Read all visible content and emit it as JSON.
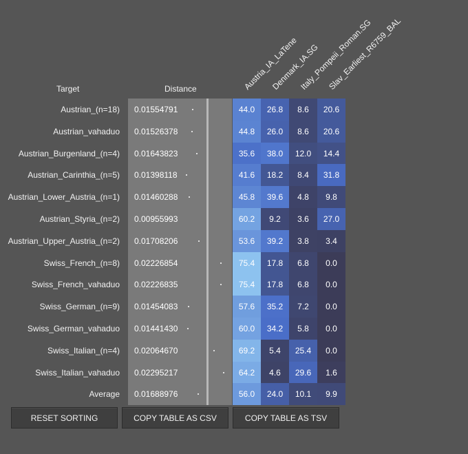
{
  "header": {
    "target_label": "Target",
    "distance_label": "Distance",
    "columns": [
      "Austria_IA_LaTene",
      "Denmark_IA.SG",
      "Italy_Pompeii_Roman.SG",
      "Slav_Earliest_R6759_BAL"
    ]
  },
  "rows": [
    {
      "name": "Austrian_(n=18)",
      "distance": "0.01554791",
      "values": [
        "44.0",
        "26.8",
        "8.6",
        "20.6"
      ]
    },
    {
      "name": "Austrian_vahaduo",
      "distance": "0.01526378",
      "values": [
        "44.8",
        "26.0",
        "8.6",
        "20.6"
      ]
    },
    {
      "name": "Austrian_Burgenland_(n=4)",
      "distance": "0.01643823",
      "values": [
        "35.6",
        "38.0",
        "12.0",
        "14.4"
      ]
    },
    {
      "name": "Austrian_Carinthia_(n=5)",
      "distance": "0.01398118",
      "values": [
        "41.6",
        "18.2",
        "8.4",
        "31.8"
      ]
    },
    {
      "name": "Austrian_Lower_Austria_(n=1)",
      "distance": "0.01460288",
      "values": [
        "45.8",
        "39.6",
        "4.8",
        "9.8"
      ]
    },
    {
      "name": "Austrian_Styria_(n=2)",
      "distance": "0.00955993",
      "values": [
        "60.2",
        "9.2",
        "3.6",
        "27.0"
      ]
    },
    {
      "name": "Austrian_Upper_Austria_(n=2)",
      "distance": "0.01708206",
      "values": [
        "53.6",
        "39.2",
        "3.8",
        "3.4"
      ]
    },
    {
      "name": "Swiss_French_(n=8)",
      "distance": "0.02226854",
      "values": [
        "75.4",
        "17.8",
        "6.8",
        "0.0"
      ]
    },
    {
      "name": "Swiss_French_vahaduo",
      "distance": "0.02226835",
      "values": [
        "75.4",
        "17.8",
        "6.8",
        "0.0"
      ]
    },
    {
      "name": "Swiss_German_(n=9)",
      "distance": "0.01454083",
      "values": [
        "57.6",
        "35.2",
        "7.2",
        "0.0"
      ]
    },
    {
      "name": "Swiss_German_vahaduo",
      "distance": "0.01441430",
      "values": [
        "60.0",
        "34.2",
        "5.8",
        "0.0"
      ]
    },
    {
      "name": "Swiss_Italian_(n=4)",
      "distance": "0.02064670",
      "values": [
        "69.2",
        "5.4",
        "25.4",
        "0.0"
      ]
    },
    {
      "name": "Swiss_Italian_vahaduo",
      "distance": "0.02295217",
      "values": [
        "64.2",
        "4.6",
        "29.6",
        "1.6"
      ]
    },
    {
      "name": "Average",
      "distance": "0.01688976",
      "values": [
        "56.0",
        "24.0",
        "10.1",
        "9.9"
      ]
    }
  ],
  "buttons": {
    "reset": "RESET SORTING",
    "copy_csv": "COPY TABLE AS CSV",
    "copy_tsv": "COPY TABLE AS TSV"
  },
  "colors": {
    "background": "#555555",
    "heat_low": "#3c3c58",
    "heat_high": "#8ec3f0"
  }
}
